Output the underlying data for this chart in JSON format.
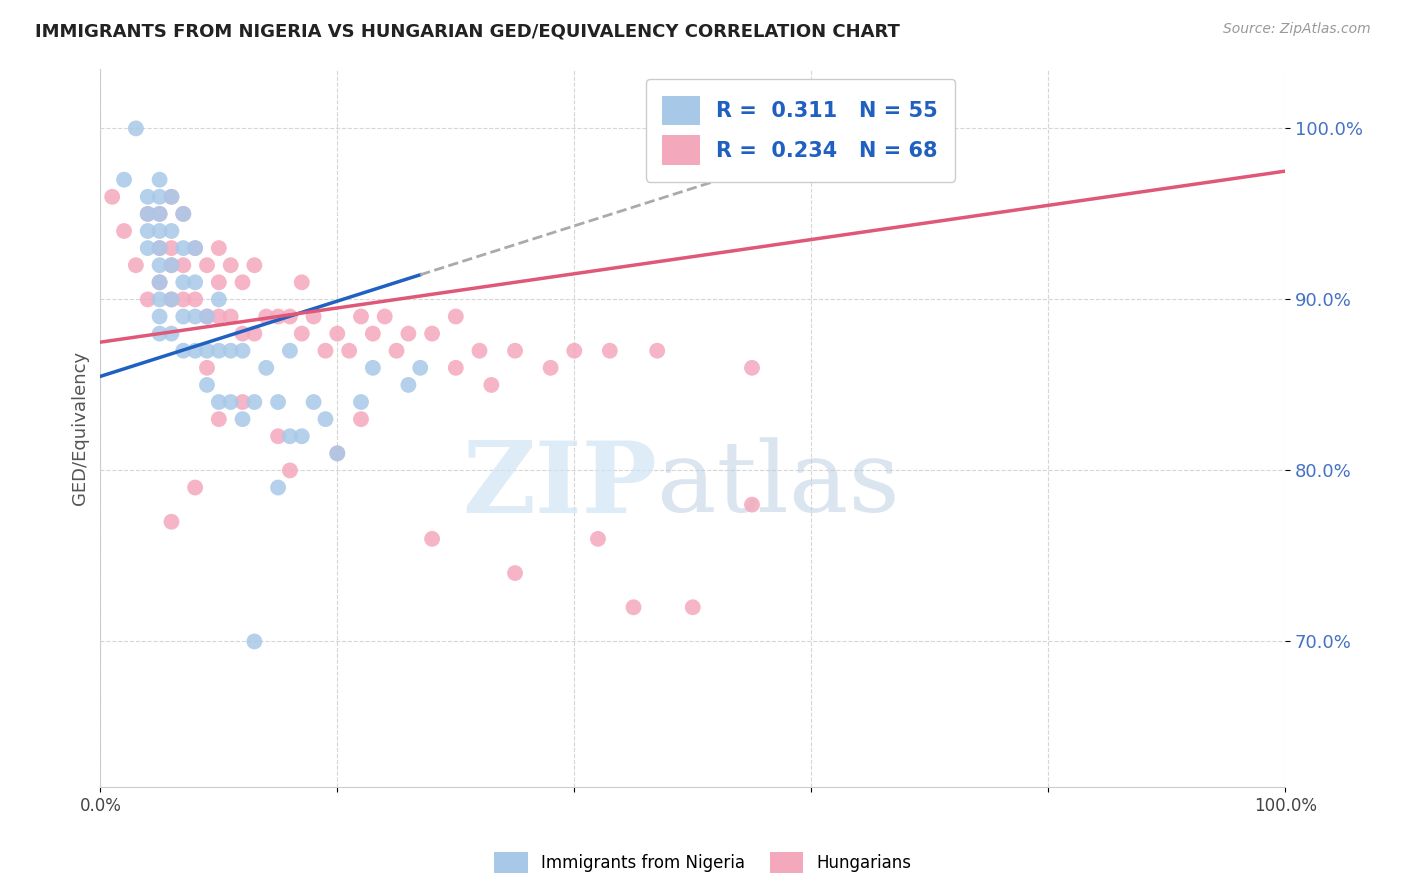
{
  "title": "IMMIGRANTS FROM NIGERIA VS HUNGARIAN GED/EQUIVALENCY CORRELATION CHART",
  "source": "Source: ZipAtlas.com",
  "ylabel": "GED/Equivalency",
  "xlim": [
    0,
    1.0
  ],
  "ylim": [
    0.615,
    1.035
  ],
  "yticks": [
    0.7,
    0.8,
    0.9,
    1.0
  ],
  "ytick_labels": [
    "70.0%",
    "80.0%",
    "90.0%",
    "100.0%"
  ],
  "xticks": [
    0.0,
    0.2,
    0.4,
    0.6,
    0.8,
    1.0
  ],
  "xtick_labels": [
    "0.0%",
    "",
    "",
    "",
    "",
    "100.0%"
  ],
  "nigeria_R": "0.311",
  "nigeria_N": "55",
  "hungarian_R": "0.234",
  "hungarian_N": "68",
  "nigeria_color": "#a8c8e8",
  "hungarian_color": "#f4a8bc",
  "nigeria_line_color": "#2060c0",
  "hungarian_line_color": "#e05878",
  "background": "#ffffff",
  "legend_color": "#2060c0",
  "watermark_zip": "ZIP",
  "watermark_atlas": "atlas",
  "watermark_color_zip": "#c8ddf0",
  "watermark_color_atlas": "#c0cce0",
  "nigeria_scatter_x": [
    0.02,
    0.03,
    0.04,
    0.04,
    0.04,
    0.04,
    0.05,
    0.05,
    0.05,
    0.05,
    0.05,
    0.05,
    0.05,
    0.05,
    0.05,
    0.05,
    0.06,
    0.06,
    0.06,
    0.06,
    0.06,
    0.07,
    0.07,
    0.07,
    0.07,
    0.07,
    0.08,
    0.08,
    0.08,
    0.08,
    0.09,
    0.09,
    0.09,
    0.1,
    0.1,
    0.1,
    0.11,
    0.11,
    0.12,
    0.12,
    0.13,
    0.14,
    0.15,
    0.15,
    0.16,
    0.16,
    0.17,
    0.18,
    0.19,
    0.2,
    0.22,
    0.23,
    0.26,
    0.27,
    0.13
  ],
  "nigeria_scatter_y": [
    0.97,
    1.0,
    0.93,
    0.94,
    0.95,
    0.96,
    0.89,
    0.91,
    0.92,
    0.93,
    0.94,
    0.95,
    0.96,
    0.97,
    0.88,
    0.9,
    0.88,
    0.9,
    0.92,
    0.94,
    0.96,
    0.87,
    0.89,
    0.91,
    0.93,
    0.95,
    0.87,
    0.89,
    0.91,
    0.93,
    0.85,
    0.87,
    0.89,
    0.84,
    0.87,
    0.9,
    0.84,
    0.87,
    0.83,
    0.87,
    0.84,
    0.86,
    0.79,
    0.84,
    0.82,
    0.87,
    0.82,
    0.84,
    0.83,
    0.81,
    0.84,
    0.86,
    0.85,
    0.86,
    0.7
  ],
  "hungarian_scatter_x": [
    0.01,
    0.02,
    0.03,
    0.04,
    0.04,
    0.05,
    0.05,
    0.05,
    0.06,
    0.06,
    0.06,
    0.06,
    0.07,
    0.07,
    0.07,
    0.08,
    0.08,
    0.09,
    0.09,
    0.1,
    0.1,
    0.1,
    0.11,
    0.11,
    0.12,
    0.12,
    0.13,
    0.13,
    0.14,
    0.15,
    0.16,
    0.17,
    0.17,
    0.18,
    0.19,
    0.2,
    0.21,
    0.22,
    0.23,
    0.24,
    0.25,
    0.26,
    0.28,
    0.3,
    0.3,
    0.32,
    0.33,
    0.35,
    0.38,
    0.4,
    0.43,
    0.45,
    0.47,
    0.5,
    0.55,
    0.15,
    0.2,
    0.12,
    0.09,
    0.06,
    0.08,
    0.1,
    0.16,
    0.22,
    0.28,
    0.35,
    0.42,
    0.55
  ],
  "hungarian_scatter_y": [
    0.96,
    0.94,
    0.92,
    0.9,
    0.95,
    0.91,
    0.93,
    0.95,
    0.9,
    0.92,
    0.93,
    0.96,
    0.9,
    0.92,
    0.95,
    0.9,
    0.93,
    0.89,
    0.92,
    0.89,
    0.91,
    0.93,
    0.89,
    0.92,
    0.88,
    0.91,
    0.88,
    0.92,
    0.89,
    0.89,
    0.89,
    0.88,
    0.91,
    0.89,
    0.87,
    0.88,
    0.87,
    0.89,
    0.88,
    0.89,
    0.87,
    0.88,
    0.88,
    0.86,
    0.89,
    0.87,
    0.85,
    0.87,
    0.86,
    0.87,
    0.87,
    0.72,
    0.87,
    0.72,
    0.86,
    0.82,
    0.81,
    0.84,
    0.86,
    0.77,
    0.79,
    0.83,
    0.8,
    0.83,
    0.76,
    0.74,
    0.76,
    0.78
  ]
}
